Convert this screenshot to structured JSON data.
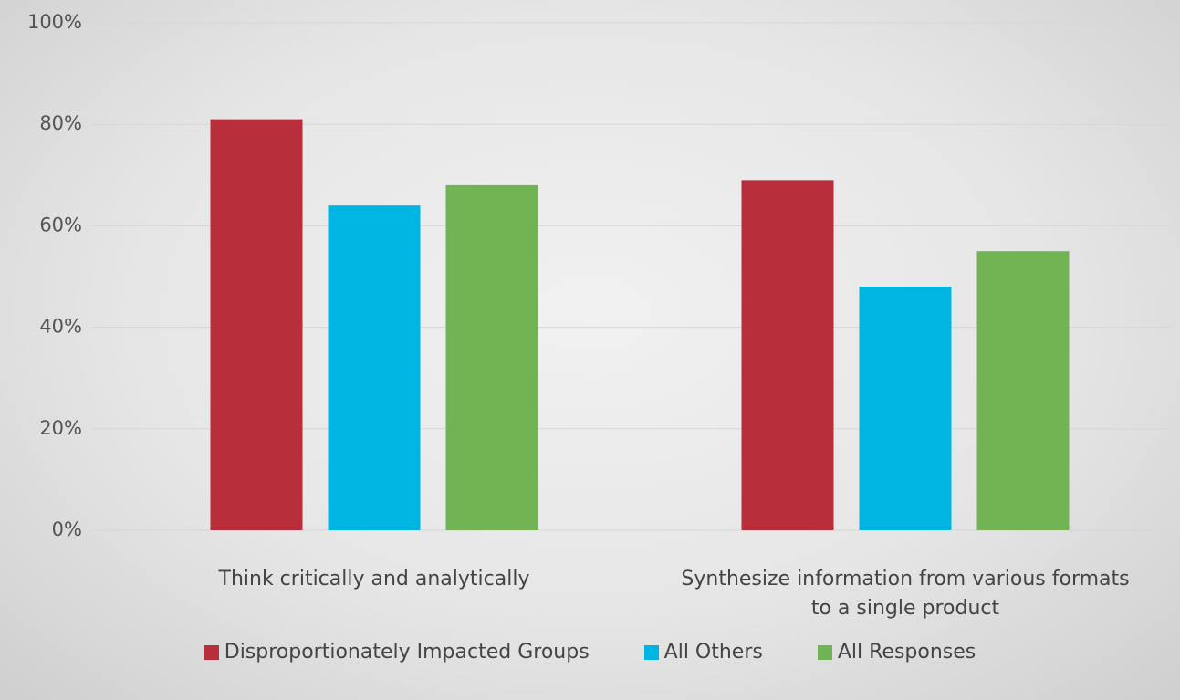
{
  "chart_data": {
    "type": "bar",
    "categories": [
      "Think critically and analytically",
      "Synthesize information from various formats to a single product"
    ],
    "series": [
      {
        "name": "Disproportionately Impacted Groups",
        "color": "#b82e3a",
        "values": [
          81,
          69
        ]
      },
      {
        "name": "All Others",
        "color": "#00b5e2",
        "values": [
          64,
          48
        ]
      },
      {
        "name": "All Responses",
        "color": "#72b354",
        "values": [
          68,
          55
        ]
      }
    ],
    "ylim": [
      0,
      100
    ],
    "yticks": [
      {
        "value": 0,
        "label": "0%"
      },
      {
        "value": 20,
        "label": "20%"
      },
      {
        "value": 40,
        "label": "40%"
      },
      {
        "value": 60,
        "label": "60%"
      },
      {
        "value": 80,
        "label": "80%"
      },
      {
        "value": 100,
        "label": "100%"
      }
    ],
    "grid": true,
    "legend": "bottom"
  }
}
